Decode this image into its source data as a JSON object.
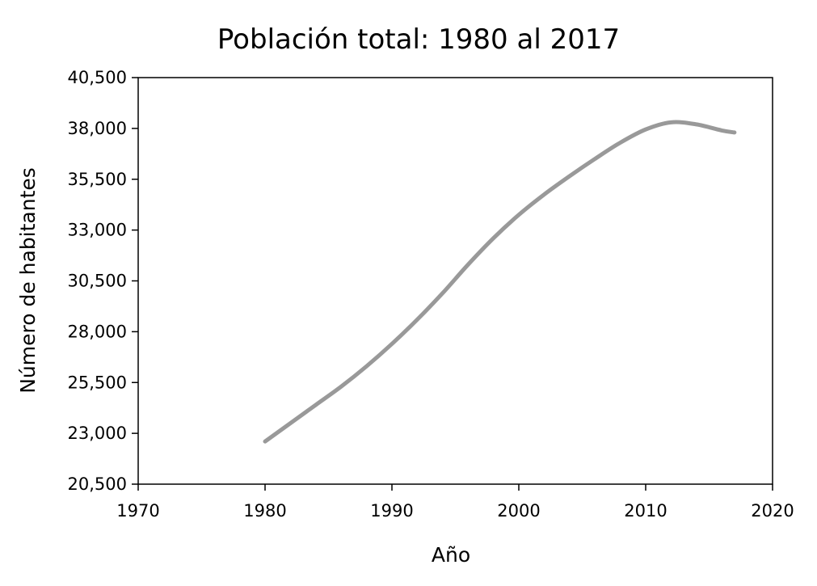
{
  "chart_data": {
    "type": "line",
    "title": "Población total: 1980 al 2017",
    "xlabel": "Año",
    "ylabel": "Número de habitantes",
    "xlim": [
      1970,
      2020
    ],
    "ylim": [
      20500,
      40500
    ],
    "x_ticks": [
      "1970",
      "1980",
      "1990",
      "2000",
      "2010",
      "2020"
    ],
    "y_ticks": [
      "20,500",
      "23,000",
      "25,500",
      "28,000",
      "30,500",
      "33,000",
      "35,500",
      "38,000",
      "40,500"
    ],
    "grid": false,
    "legend": "none",
    "line_color": "#999999",
    "series": [
      {
        "x": [
          1980,
          1982,
          1984,
          1986,
          1988,
          1990,
          1992,
          1994,
          1996,
          1998,
          2000,
          2002,
          2004,
          2006,
          2008,
          2010,
          2012,
          2014,
          2016,
          2017
        ],
        "y": [
          22600,
          23500,
          24400,
          25300,
          26300,
          27400,
          28600,
          29900,
          31300,
          32600,
          33750,
          34750,
          35650,
          36500,
          37300,
          37950,
          38300,
          38200,
          37900,
          37800
        ]
      }
    ]
  }
}
